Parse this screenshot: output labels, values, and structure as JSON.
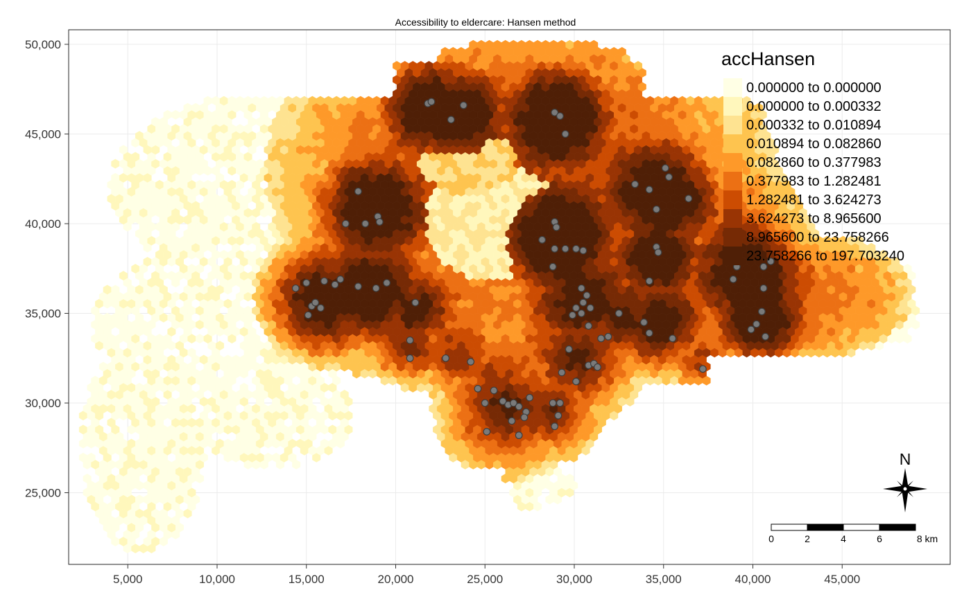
{
  "title": "Accessibility to eldercare: Hansen method",
  "axes": {
    "x_ticks": [
      "5,000",
      "10,000",
      "15,000",
      "20,000",
      "25,000",
      "30,000",
      "35,000",
      "40,000",
      "45,000"
    ],
    "y_ticks": [
      "50,000",
      "45,000",
      "40,000",
      "35,000",
      "30,000",
      "25,000"
    ]
  },
  "legend": {
    "title": "accHansen",
    "classes": [
      {
        "label": "0.000000 to 0.000000",
        "color": "#FFFFE5"
      },
      {
        "label": "0.000000 to 0.000332",
        "color": "#FFF7BC"
      },
      {
        "label": "0.000332 to 0.010894",
        "color": "#FEE391"
      },
      {
        "label": "0.010894 to 0.082860",
        "color": "#FEC44F"
      },
      {
        "label": "0.082860 to 0.377983",
        "color": "#FE9929"
      },
      {
        "label": "0.377983 to 1.282481",
        "color": "#EC7014"
      },
      {
        "label": "1.282481 to 3.624273",
        "color": "#CC4C02"
      },
      {
        "label": "3.624273 to 8.965600",
        "color": "#993404"
      },
      {
        "label": "8.965600 to 23.758266",
        "color": "#762A05"
      },
      {
        "label": "23.758266 to 197.703240",
        "color": "#4F1F06"
      }
    ]
  },
  "north_arrow": {
    "label": "N"
  },
  "scale_bar": {
    "labels": [
      "0",
      "2",
      "4",
      "6",
      "8 km"
    ]
  },
  "facility_color": "#7A7A7A",
  "chart_data": {
    "type": "choropleth-hexbin",
    "title": "Accessibility to eldercare: Hansen method",
    "variable": "accHansen",
    "classification": "quantile breaks",
    "xlim": [
      2000,
      50000
    ],
    "ylim": [
      21000,
      51000
    ],
    "facility_points": [
      [
        21800,
        46700
      ],
      [
        22000,
        46800
      ],
      [
        23800,
        46600
      ],
      [
        23100,
        45800
      ],
      [
        28900,
        46200
      ],
      [
        29200,
        46000
      ],
      [
        29500,
        45000
      ],
      [
        17900,
        41800
      ],
      [
        18300,
        40000
      ],
      [
        17200,
        40000
      ],
      [
        19000,
        40400
      ],
      [
        19100,
        40100
      ],
      [
        15000,
        36700
      ],
      [
        14400,
        36400
      ],
      [
        16000,
        36800
      ],
      [
        16600,
        36600
      ],
      [
        16900,
        36900
      ],
      [
        17900,
        36500
      ],
      [
        18900,
        36400
      ],
      [
        19500,
        36700
      ],
      [
        15300,
        35400
      ],
      [
        15500,
        35600
      ],
      [
        15800,
        35300
      ],
      [
        15100,
        34900
      ],
      [
        21100,
        35600
      ],
      [
        20800,
        33500
      ],
      [
        20800,
        32500
      ],
      [
        22800,
        32500
      ],
      [
        24200,
        32300
      ],
      [
        24600,
        30800
      ],
      [
        25000,
        30000
      ],
      [
        25500,
        30700
      ],
      [
        26000,
        30100
      ],
      [
        26300,
        29900
      ],
      [
        26600,
        30000
      ],
      [
        26900,
        29800
      ],
      [
        27300,
        29500
      ],
      [
        27500,
        30300
      ],
      [
        27200,
        29200
      ],
      [
        26500,
        29000
      ],
      [
        28800,
        30000
      ],
      [
        29200,
        30000
      ],
      [
        29100,
        29300
      ],
      [
        28900,
        28700
      ],
      [
        26900,
        28200
      ],
      [
        25100,
        28400
      ],
      [
        28200,
        39100
      ],
      [
        28900,
        40100
      ],
      [
        29000,
        39800
      ],
      [
        28900,
        38600
      ],
      [
        29500,
        38600
      ],
      [
        30100,
        38600
      ],
      [
        30500,
        38500
      ],
      [
        28800,
        37600
      ],
      [
        30400,
        36400
      ],
      [
        30700,
        36000
      ],
      [
        30500,
        35600
      ],
      [
        30100,
        35300
      ],
      [
        29900,
        34900
      ],
      [
        30400,
        35000
      ],
      [
        30800,
        34300
      ],
      [
        30900,
        35300
      ],
      [
        29700,
        33000
      ],
      [
        29300,
        31700
      ],
      [
        30100,
        31200
      ],
      [
        30800,
        32100
      ],
      [
        31100,
        32200
      ],
      [
        31300,
        32000
      ],
      [
        31500,
        33600
      ],
      [
        31900,
        33700
      ],
      [
        32500,
        35000
      ],
      [
        33400,
        42200
      ],
      [
        34200,
        41900
      ],
      [
        34600,
        40800
      ],
      [
        35100,
        43100
      ],
      [
        35300,
        42600
      ],
      [
        36400,
        41400
      ],
      [
        34600,
        38700
      ],
      [
        34700,
        38400
      ],
      [
        34200,
        36800
      ],
      [
        33900,
        34500
      ],
      [
        34200,
        33900
      ],
      [
        35500,
        33600
      ],
      [
        37200,
        31900
      ],
      [
        39100,
        37600
      ],
      [
        38900,
        36900
      ],
      [
        40600,
        37600
      ],
      [
        41000,
        37900
      ],
      [
        40600,
        36400
      ],
      [
        39900,
        34100
      ],
      [
        40200,
        34400
      ],
      [
        40500,
        35100
      ],
      [
        40700,
        33700
      ]
    ]
  }
}
